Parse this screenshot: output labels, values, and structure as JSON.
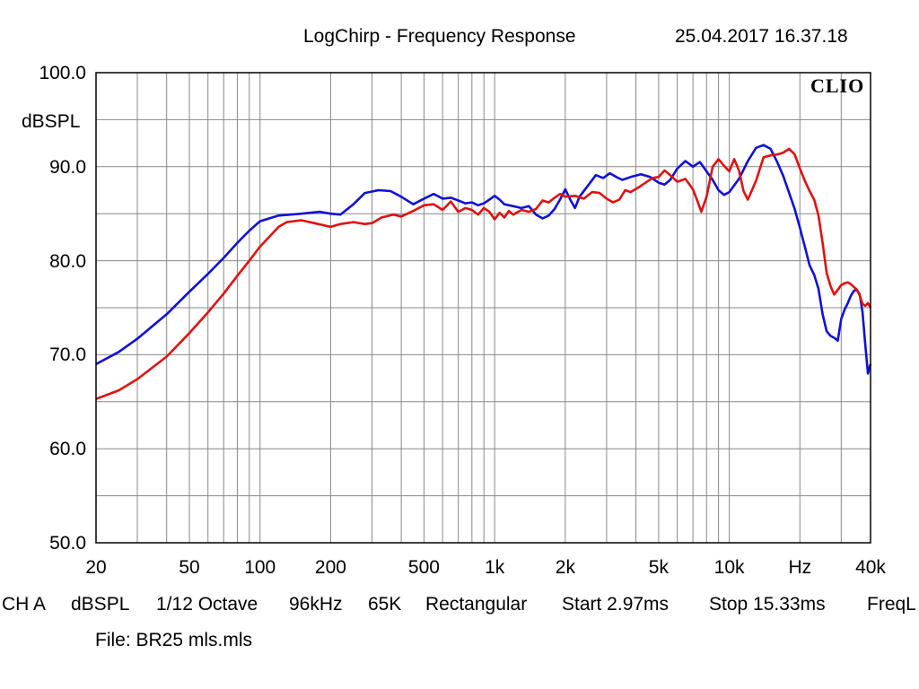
{
  "header": {
    "title": "LogChirp - Frequency Response",
    "datetime": "25.04.2017 16.37.18"
  },
  "logo": "CLIO",
  "footer": {
    "items": [
      "CH A",
      "dBSPL",
      "1/12 Octave",
      "96kHz",
      "65K",
      "Rectangular",
      "Start 2.97ms",
      "Stop 15.33ms",
      "FreqL"
    ],
    "file": "File: BR25 mls.mls"
  },
  "colors": {
    "blue_series": "#1010d8",
    "red_series": "#e01010",
    "grid": "#888888"
  },
  "chart_data": {
    "type": "line",
    "title": "LogChirp - Frequency Response",
    "ylabel": "dBSPL",
    "xlabel": "Hz",
    "x_scale": "log",
    "xlim": [
      20,
      40000
    ],
    "ylim": [
      50,
      100
    ],
    "grid": true,
    "x_tick_labels": [
      "20",
      "50",
      "100",
      "200",
      "500",
      "1k",
      "2k",
      "5k",
      "10k",
      "Hz",
      "40k"
    ],
    "y_tick_labels": [
      "100.0",
      "90.0",
      "80.0",
      "70.0",
      "60.0",
      "50.0"
    ],
    "series": [
      {
        "color": "blue",
        "points": [
          [
            20,
            69
          ],
          [
            25,
            70.3
          ],
          [
            30,
            71.7
          ],
          [
            40,
            74.3
          ],
          [
            50,
            76.7
          ],
          [
            60,
            78.6
          ],
          [
            70,
            80.3
          ],
          [
            80,
            81.9
          ],
          [
            90,
            83.2
          ],
          [
            100,
            84.2
          ],
          [
            120,
            84.8
          ],
          [
            150,
            85
          ],
          [
            180,
            85.2
          ],
          [
            200,
            85
          ],
          [
            220,
            84.9
          ],
          [
            250,
            86
          ],
          [
            280,
            87.2
          ],
          [
            320,
            87.5
          ],
          [
            360,
            87.4
          ],
          [
            400,
            86.8
          ],
          [
            450,
            86
          ],
          [
            500,
            86.6
          ],
          [
            550,
            87.1
          ],
          [
            600,
            86.6
          ],
          [
            650,
            86.7
          ],
          [
            700,
            86.4
          ],
          [
            750,
            86.1
          ],
          [
            800,
            86.2
          ],
          [
            850,
            85.9
          ],
          [
            900,
            86.1
          ],
          [
            950,
            86.5
          ],
          [
            1000,
            86.9
          ],
          [
            1050,
            86.5
          ],
          [
            1100,
            86
          ],
          [
            1200,
            85.8
          ],
          [
            1300,
            85.6
          ],
          [
            1400,
            85.8
          ],
          [
            1500,
            84.9
          ],
          [
            1600,
            84.5
          ],
          [
            1700,
            84.8
          ],
          [
            1800,
            85.5
          ],
          [
            1900,
            86.5
          ],
          [
            2000,
            87.6
          ],
          [
            2100,
            86.5
          ],
          [
            2200,
            85.6
          ],
          [
            2300,
            86.8
          ],
          [
            2500,
            88
          ],
          [
            2700,
            89.1
          ],
          [
            2900,
            88.8
          ],
          [
            3100,
            89.3
          ],
          [
            3300,
            88.9
          ],
          [
            3500,
            88.6
          ],
          [
            3800,
            88.9
          ],
          [
            4200,
            89.2
          ],
          [
            4600,
            88.9
          ],
          [
            5000,
            88.3
          ],
          [
            5300,
            88.1
          ],
          [
            5600,
            88.6
          ],
          [
            6000,
            89.8
          ],
          [
            6500,
            90.6
          ],
          [
            7000,
            90
          ],
          [
            7500,
            90.5
          ],
          [
            8000,
            89.5
          ],
          [
            8500,
            88.6
          ],
          [
            9000,
            87.5
          ],
          [
            9500,
            87
          ],
          [
            10000,
            87.3
          ],
          [
            11000,
            88.7
          ],
          [
            12000,
            90.6
          ],
          [
            13000,
            92
          ],
          [
            14000,
            92.3
          ],
          [
            15000,
            91.9
          ],
          [
            16000,
            90.5
          ],
          [
            17000,
            89
          ],
          [
            18000,
            87.2
          ],
          [
            19000,
            85.5
          ],
          [
            20000,
            83.5
          ],
          [
            21000,
            81.5
          ],
          [
            22000,
            79.5
          ],
          [
            23000,
            78.5
          ],
          [
            24000,
            77
          ],
          [
            25000,
            74.3
          ],
          [
            26000,
            72.5
          ],
          [
            27000,
            72
          ],
          [
            28000,
            71.8
          ],
          [
            29000,
            71.5
          ],
          [
            30000,
            73.8
          ],
          [
            31000,
            74.8
          ],
          [
            32000,
            75.5
          ],
          [
            33000,
            76.3
          ],
          [
            34000,
            76.8
          ],
          [
            35000,
            76.9
          ],
          [
            36000,
            76.4
          ],
          [
            37000,
            74.5
          ],
          [
            38000,
            71
          ],
          [
            39000,
            68
          ],
          [
            40000,
            69
          ]
        ]
      },
      {
        "color": "red",
        "points": [
          [
            20,
            65.3
          ],
          [
            25,
            66.2
          ],
          [
            30,
            67.4
          ],
          [
            40,
            69.8
          ],
          [
            50,
            72.3
          ],
          [
            60,
            74.5
          ],
          [
            70,
            76.5
          ],
          [
            80,
            78.4
          ],
          [
            90,
            80
          ],
          [
            100,
            81.5
          ],
          [
            110,
            82.6
          ],
          [
            120,
            83.6
          ],
          [
            130,
            84.1
          ],
          [
            150,
            84.3
          ],
          [
            170,
            84
          ],
          [
            200,
            83.6
          ],
          [
            220,
            83.9
          ],
          [
            250,
            84.1
          ],
          [
            280,
            83.9
          ],
          [
            300,
            84
          ],
          [
            330,
            84.6
          ],
          [
            370,
            84.9
          ],
          [
            400,
            84.7
          ],
          [
            450,
            85.3
          ],
          [
            500,
            85.9
          ],
          [
            550,
            86
          ],
          [
            600,
            85.4
          ],
          [
            650,
            86.3
          ],
          [
            700,
            85.2
          ],
          [
            750,
            85.6
          ],
          [
            800,
            85.4
          ],
          [
            850,
            84.9
          ],
          [
            900,
            85.6
          ],
          [
            950,
            85.2
          ],
          [
            1000,
            84.4
          ],
          [
            1050,
            85.1
          ],
          [
            1100,
            84.6
          ],
          [
            1150,
            85.3
          ],
          [
            1200,
            84.9
          ],
          [
            1300,
            85.4
          ],
          [
            1400,
            85.2
          ],
          [
            1500,
            85.5
          ],
          [
            1600,
            86.4
          ],
          [
            1700,
            86.2
          ],
          [
            1800,
            86.7
          ],
          [
            1900,
            87.1
          ],
          [
            2000,
            86.8
          ],
          [
            2200,
            86.9
          ],
          [
            2400,
            86.6
          ],
          [
            2600,
            87.3
          ],
          [
            2800,
            87.2
          ],
          [
            3000,
            86.6
          ],
          [
            3200,
            86.2
          ],
          [
            3400,
            86.5
          ],
          [
            3600,
            87.5
          ],
          [
            3800,
            87.3
          ],
          [
            4100,
            87.8
          ],
          [
            4400,
            88.3
          ],
          [
            4700,
            88.8
          ],
          [
            5000,
            88.9
          ],
          [
            5300,
            89.6
          ],
          [
            5600,
            89.1
          ],
          [
            6000,
            88.4
          ],
          [
            6500,
            88.7
          ],
          [
            7000,
            87.6
          ],
          [
            7300,
            86.4
          ],
          [
            7600,
            85.2
          ],
          [
            8000,
            86.8
          ],
          [
            8500,
            90
          ],
          [
            9000,
            90.8
          ],
          [
            9500,
            90.1
          ],
          [
            10000,
            89.5
          ],
          [
            10500,
            90.8
          ],
          [
            11000,
            89.6
          ],
          [
            11500,
            87.4
          ],
          [
            12000,
            86.5
          ],
          [
            13000,
            88.5
          ],
          [
            14000,
            91
          ],
          [
            15000,
            91.2
          ],
          [
            16000,
            91.3
          ],
          [
            17000,
            91.5
          ],
          [
            18000,
            91.9
          ],
          [
            19000,
            91.3
          ],
          [
            20000,
            89.8
          ],
          [
            21000,
            88.5
          ],
          [
            22000,
            87.4
          ],
          [
            23000,
            86.5
          ],
          [
            24000,
            84.8
          ],
          [
            25000,
            81.9
          ],
          [
            26000,
            78.7
          ],
          [
            27000,
            77.3
          ],
          [
            28000,
            76.4
          ],
          [
            29000,
            76.9
          ],
          [
            30000,
            77.4
          ],
          [
            31000,
            77.6
          ],
          [
            32000,
            77.7
          ],
          [
            33000,
            77.5
          ],
          [
            34000,
            77.2
          ],
          [
            35000,
            76.9
          ],
          [
            36000,
            76.3
          ],
          [
            37000,
            75.4
          ],
          [
            38000,
            75.2
          ],
          [
            39000,
            75.5
          ],
          [
            40000,
            75
          ]
        ]
      }
    ]
  }
}
